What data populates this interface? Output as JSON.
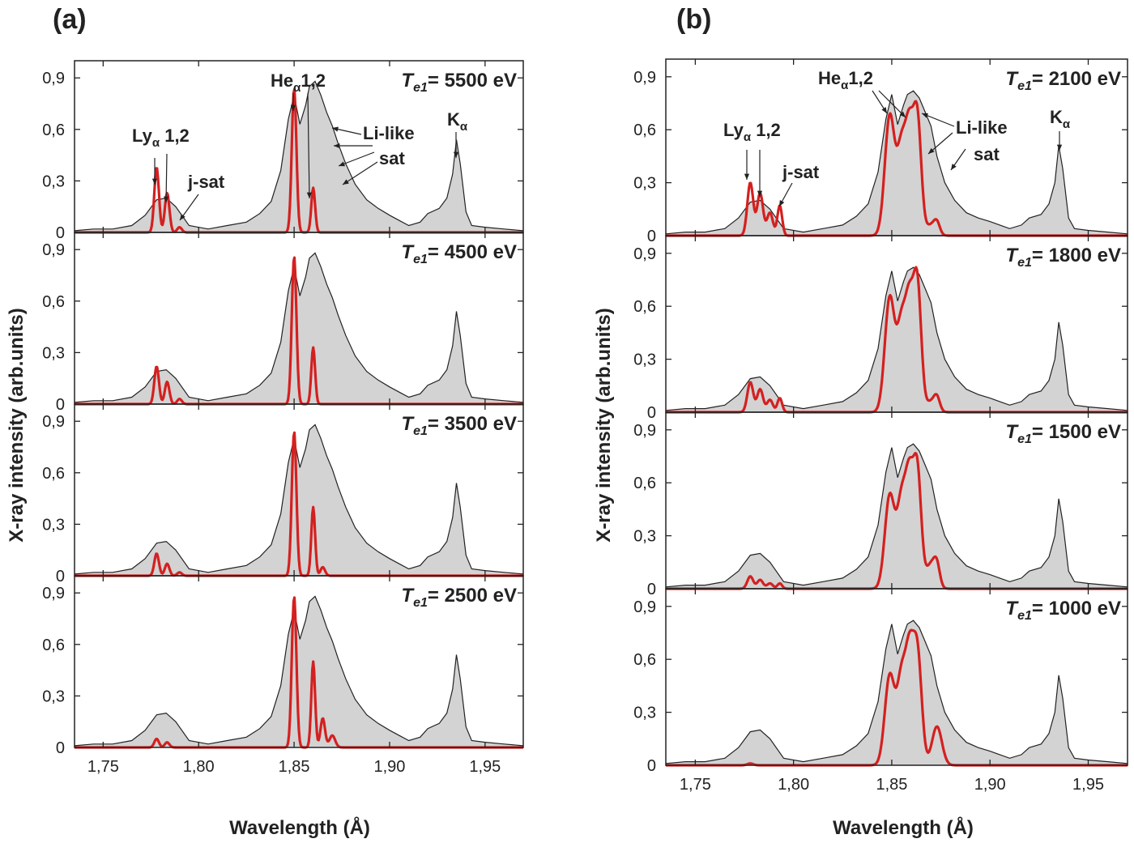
{
  "panels": [
    {
      "label": "(a)",
      "ylabel": "X-ray intensity (arb.units)",
      "xlabel": "Wavelength (Å)"
    },
    {
      "label": "(b)",
      "ylabel": "X-ray intensity (arb.units)",
      "xlabel": "Wavelength (Å)"
    }
  ],
  "annotations": {
    "ly": "Lyα 1,2",
    "jsat": "j-sat",
    "he": "Heα1,2",
    "lilike": "Li-like",
    "sat": "sat",
    "ka": "Kα"
  },
  "colors": {
    "experiment_fill": "#d3d3d3",
    "experiment_line": "#222222",
    "model_line": "#d42020"
  },
  "chart_data": [
    {
      "type": "area",
      "panel": "(a)",
      "xlim": [
        1.735,
        1.97
      ],
      "ylim": [
        0,
        1.0
      ],
      "xticks": [
        "1,75",
        "1,80",
        "1,85",
        "1,90",
        "1,95"
      ],
      "xtick_values": [
        1.75,
        1.8,
        1.85,
        1.9,
        1.95
      ],
      "yticks": [
        "0",
        "0,3",
        "0,6",
        "0,9"
      ],
      "ytick_values": [
        0,
        0.3,
        0.6,
        0.9
      ],
      "xlabel": "Wavelength (Å)",
      "ylabel": "X-ray intensity (arb.units)",
      "experiment": {
        "x": [
          1.735,
          1.745,
          1.755,
          1.765,
          1.772,
          1.778,
          1.783,
          1.788,
          1.795,
          1.805,
          1.815,
          1.825,
          1.832,
          1.838,
          1.843,
          1.847,
          1.85,
          1.853,
          1.856,
          1.858,
          1.861,
          1.864,
          1.867,
          1.87,
          1.873,
          1.877,
          1.882,
          1.888,
          1.894,
          1.9,
          1.905,
          1.91,
          1.916,
          1.92,
          1.926,
          1.93,
          1.933,
          1.935,
          1.937,
          1.94,
          1.943,
          1.95,
          1.96,
          1.97
        ],
        "y": [
          0.01,
          0.02,
          0.02,
          0.04,
          0.1,
          0.19,
          0.2,
          0.15,
          0.04,
          0.02,
          0.04,
          0.06,
          0.11,
          0.18,
          0.36,
          0.66,
          0.8,
          0.63,
          0.74,
          0.85,
          0.88,
          0.8,
          0.7,
          0.62,
          0.52,
          0.4,
          0.28,
          0.19,
          0.14,
          0.1,
          0.07,
          0.04,
          0.06,
          0.11,
          0.14,
          0.2,
          0.34,
          0.54,
          0.4,
          0.12,
          0.04,
          0.03,
          0.02,
          0.01
        ]
      },
      "series": [
        {
          "temperature": "Te1 = 5500 eV",
          "model_peaks": [
            [
              1.778,
              0.38,
              0.0012
            ],
            [
              1.7835,
              0.23,
              0.0012
            ],
            [
              1.79,
              0.03,
              0.0012
            ],
            [
              1.85,
              0.84,
              0.0012
            ],
            [
              1.86,
              0.26,
              0.001
            ]
          ]
        },
        {
          "temperature": "Te1 = 4500 eV",
          "model_peaks": [
            [
              1.778,
              0.22,
              0.0012
            ],
            [
              1.7835,
              0.13,
              0.0012
            ],
            [
              1.79,
              0.03,
              0.0012
            ],
            [
              1.85,
              0.86,
              0.0012
            ],
            [
              1.86,
              0.33,
              0.001
            ]
          ]
        },
        {
          "temperature": "Te1 = 3500 eV",
          "model_peaks": [
            [
              1.778,
              0.13,
              0.0012
            ],
            [
              1.7835,
              0.07,
              0.0012
            ],
            [
              1.79,
              0.02,
              0.0012
            ],
            [
              1.85,
              0.84,
              0.0012
            ],
            [
              1.86,
              0.4,
              0.001
            ],
            [
              1.865,
              0.05,
              0.0012
            ]
          ]
        },
        {
          "temperature": "Te1 = 2500 eV",
          "model_peaks": [
            [
              1.778,
              0.05,
              0.0012
            ],
            [
              1.7835,
              0.03,
              0.0012
            ],
            [
              1.85,
              0.88,
              0.0012
            ],
            [
              1.86,
              0.5,
              0.001
            ],
            [
              1.865,
              0.17,
              0.0012
            ],
            [
              1.87,
              0.07,
              0.0015
            ]
          ]
        }
      ]
    },
    {
      "type": "area",
      "panel": "(b)",
      "xlim": [
        1.735,
        1.97
      ],
      "ylim": [
        0,
        1.0
      ],
      "xticks": [
        "1,75",
        "1,80",
        "1,85",
        "1,90",
        "1,95"
      ],
      "xtick_values": [
        1.75,
        1.8,
        1.85,
        1.9,
        1.95
      ],
      "yticks": [
        "0",
        "0,3",
        "0,6",
        "0,9"
      ],
      "ytick_values": [
        0,
        0.3,
        0.6,
        0.9
      ],
      "xlabel": "Wavelength (Å)",
      "ylabel": "X-ray intensity (arb.units)",
      "experiment": {
        "x": [
          1.735,
          1.745,
          1.755,
          1.765,
          1.772,
          1.778,
          1.783,
          1.788,
          1.795,
          1.805,
          1.815,
          1.825,
          1.832,
          1.838,
          1.843,
          1.847,
          1.85,
          1.853,
          1.856,
          1.858,
          1.861,
          1.864,
          1.867,
          1.87,
          1.873,
          1.877,
          1.882,
          1.888,
          1.894,
          1.9,
          1.905,
          1.91,
          1.916,
          1.92,
          1.926,
          1.93,
          1.933,
          1.935,
          1.937,
          1.94,
          1.943,
          1.95,
          1.96,
          1.97
        ],
        "y": [
          0.01,
          0.02,
          0.02,
          0.04,
          0.1,
          0.19,
          0.2,
          0.15,
          0.04,
          0.02,
          0.04,
          0.06,
          0.11,
          0.18,
          0.36,
          0.66,
          0.8,
          0.63,
          0.74,
          0.8,
          0.82,
          0.78,
          0.7,
          0.62,
          0.45,
          0.3,
          0.2,
          0.13,
          0.1,
          0.08,
          0.06,
          0.04,
          0.06,
          0.1,
          0.12,
          0.18,
          0.3,
          0.51,
          0.38,
          0.1,
          0.04,
          0.03,
          0.02,
          0.01
        ]
      },
      "series": [
        {
          "temperature": "Te1 = 2100 eV",
          "model_peaks": [
            [
              1.778,
              0.3,
              0.0015
            ],
            [
              1.783,
              0.24,
              0.0015
            ],
            [
              1.788,
              0.13,
              0.0015
            ],
            [
              1.793,
              0.17,
              0.0012
            ],
            [
              1.849,
              0.68,
              0.0025
            ],
            [
              1.855,
              0.48,
              0.0022
            ],
            [
              1.859,
              0.54,
              0.002
            ],
            [
              1.863,
              0.66,
              0.002
            ],
            [
              1.87,
              0.06,
              0.0025
            ],
            [
              1.873,
              0.06,
              0.0015
            ]
          ]
        },
        {
          "temperature": "Te1 = 1800 eV",
          "model_peaks": [
            [
              1.778,
              0.17,
              0.0015
            ],
            [
              1.783,
              0.13,
              0.0015
            ],
            [
              1.788,
              0.07,
              0.0015
            ],
            [
              1.793,
              0.08,
              0.0012
            ],
            [
              1.849,
              0.65,
              0.0025
            ],
            [
              1.855,
              0.48,
              0.0022
            ],
            [
              1.859,
              0.55,
              0.002
            ],
            [
              1.863,
              0.72,
              0.002
            ],
            [
              1.87,
              0.06,
              0.0025
            ],
            [
              1.873,
              0.07,
              0.0015
            ]
          ]
        },
        {
          "temperature": "Te1 = 1500 eV",
          "model_peaks": [
            [
              1.778,
              0.07,
              0.0015
            ],
            [
              1.783,
              0.05,
              0.0015
            ],
            [
              1.788,
              0.03,
              0.0015
            ],
            [
              1.793,
              0.03,
              0.0012
            ],
            [
              1.849,
              0.53,
              0.0025
            ],
            [
              1.855,
              0.48,
              0.0022
            ],
            [
              1.859,
              0.56,
              0.002
            ],
            [
              1.863,
              0.66,
              0.002
            ],
            [
              1.87,
              0.14,
              0.0025
            ],
            [
              1.873,
              0.1,
              0.0015
            ]
          ]
        },
        {
          "temperature": "Te1 = 1000 eV",
          "model_peaks": [
            [
              1.778,
              0.01,
              0.0015
            ],
            [
              1.849,
              0.51,
              0.0025
            ],
            [
              1.855,
              0.48,
              0.0022
            ],
            [
              1.859,
              0.54,
              0.002
            ],
            [
              1.863,
              0.64,
              0.0022
            ],
            [
              1.873,
              0.22,
              0.0025
            ]
          ]
        }
      ]
    }
  ]
}
